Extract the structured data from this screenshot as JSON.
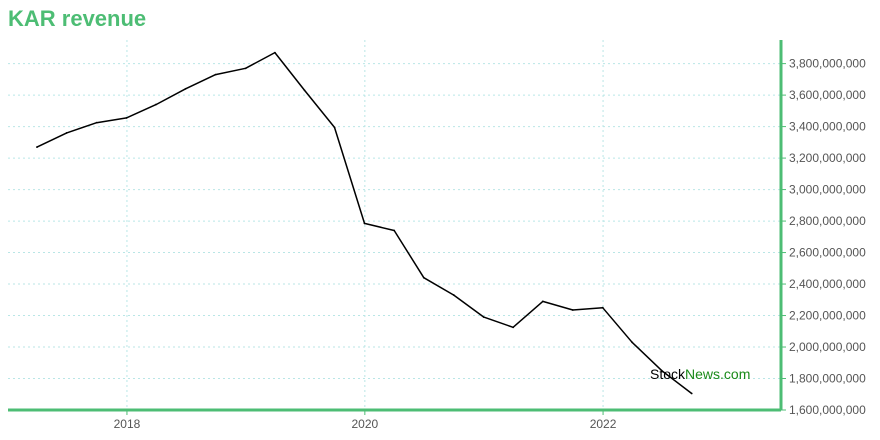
{
  "header": {
    "title": "KAR revenue"
  },
  "watermark": {
    "part1": "Stock",
    "part2": "News.com"
  },
  "colors": {
    "accent": "#4dbd74",
    "line": "#000000",
    "grid": "#b9e6e6"
  },
  "chart_data": {
    "type": "line",
    "title": "KAR revenue",
    "xlabel": "",
    "ylabel": "",
    "y_axis_side": "right",
    "grid": true,
    "xlim": [
      "2017-01-01",
      "2023-07-01"
    ],
    "ylim": [
      1600000000,
      3950000000
    ],
    "x_ticks": [
      {
        "date": "2018-01-01",
        "label": "2018"
      },
      {
        "date": "2020-01-01",
        "label": "2020"
      },
      {
        "date": "2022-01-01",
        "label": "2022"
      }
    ],
    "y_ticks": [
      {
        "value": 1600000000,
        "label": "1,600,000,000"
      },
      {
        "value": 1800000000,
        "label": "1,800,000,000"
      },
      {
        "value": 2000000000,
        "label": "2,000,000,000"
      },
      {
        "value": 2200000000,
        "label": "2,200,000,000"
      },
      {
        "value": 2400000000,
        "label": "2,400,000,000"
      },
      {
        "value": 2600000000,
        "label": "2,600,000,000"
      },
      {
        "value": 2800000000,
        "label": "2,800,000,000"
      },
      {
        "value": 3000000000,
        "label": "3,000,000,000"
      },
      {
        "value": 3200000000,
        "label": "3,200,000,000"
      },
      {
        "value": 3400000000,
        "label": "3,400,000,000"
      },
      {
        "value": 3600000000,
        "label": "3,600,000,000"
      },
      {
        "value": 3800000000,
        "label": "3,800,000,000"
      }
    ],
    "series": [
      {
        "points": [
          {
            "x": "2017-03-31",
            "y": 3270000000
          },
          {
            "x": "2017-06-30",
            "y": 3360000000
          },
          {
            "x": "2017-09-30",
            "y": 3425000000
          },
          {
            "x": "2017-12-31",
            "y": 3455000000
          },
          {
            "x": "2018-03-31",
            "y": 3540000000
          },
          {
            "x": "2018-06-30",
            "y": 3640000000
          },
          {
            "x": "2018-09-30",
            "y": 3730000000
          },
          {
            "x": "2018-12-31",
            "y": 3770000000
          },
          {
            "x": "2019-03-31",
            "y": 3870000000
          },
          {
            "x": "2019-06-30",
            "y": 3630000000
          },
          {
            "x": "2019-09-30",
            "y": 3395000000
          },
          {
            "x": "2019-12-31",
            "y": 2785000000
          },
          {
            "x": "2020-03-31",
            "y": 2740000000
          },
          {
            "x": "2020-06-30",
            "y": 2440000000
          },
          {
            "x": "2020-09-30",
            "y": 2330000000
          },
          {
            "x": "2020-12-31",
            "y": 2190000000
          },
          {
            "x": "2021-03-31",
            "y": 2125000000
          },
          {
            "x": "2021-06-30",
            "y": 2290000000
          },
          {
            "x": "2021-09-30",
            "y": 2235000000
          },
          {
            "x": "2021-12-31",
            "y": 2250000000
          },
          {
            "x": "2022-03-31",
            "y": 2030000000
          },
          {
            "x": "2022-06-30",
            "y": 1850000000
          },
          {
            "x": "2022-09-30",
            "y": 1705000000
          }
        ]
      }
    ]
  }
}
